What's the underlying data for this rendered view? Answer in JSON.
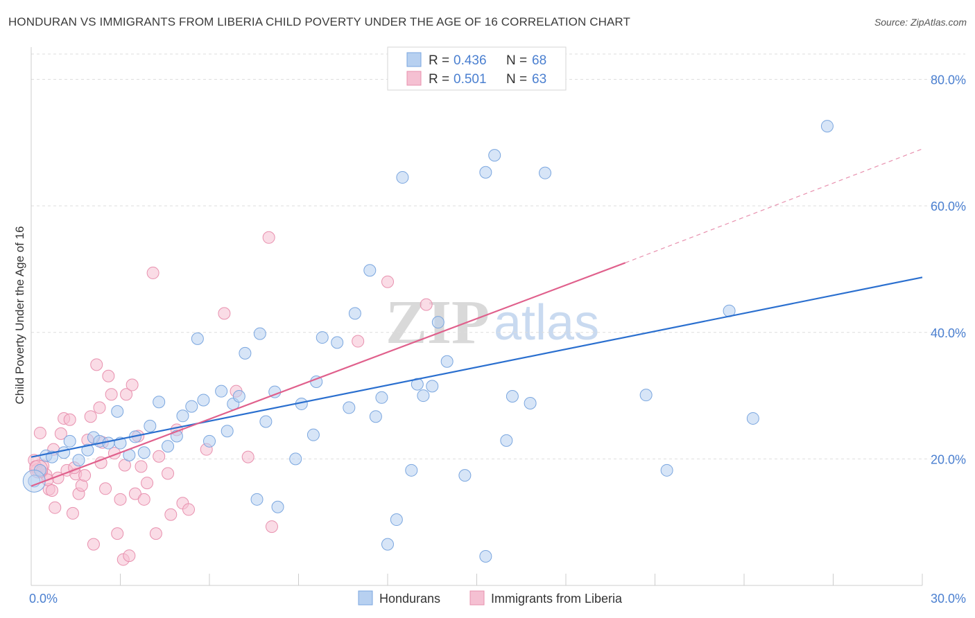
{
  "title": "HONDURAN VS IMMIGRANTS FROM LIBERIA CHILD POVERTY UNDER THE AGE OF 16 CORRELATION CHART",
  "source": "Source: ZipAtlas.com",
  "watermark": {
    "part1": "ZIP",
    "part2": "atlas"
  },
  "colors": {
    "series1_fill": "#b7d0f0",
    "series1_stroke": "#7aa6df",
    "series1_line": "#2a6fcf",
    "series2_fill": "#f5c0d2",
    "series2_stroke": "#e890ae",
    "series2_line": "#e0608c",
    "tick_text": "#4a7fd0",
    "grid": "#dddddd"
  },
  "legend": {
    "r_label": "R =",
    "n_label": "N =",
    "entries": [
      {
        "r": "0.436",
        "n": "68"
      },
      {
        "r": "0.501",
        "n": "63"
      }
    ]
  },
  "chart_data": {
    "type": "scatter",
    "title": "HONDURAN VS IMMIGRANTS FROM LIBERIA CHILD POVERTY UNDER THE AGE OF 16 CORRELATION CHART",
    "xlabel": "",
    "ylabel": "Child Poverty Under the Age of 16",
    "xlim": [
      0,
      30
    ],
    "ylim": [
      0,
      84
    ],
    "x_tick_labels": [
      "0.0%",
      "30.0%"
    ],
    "y_ticks": [
      20,
      40,
      60,
      80
    ],
    "y_tick_labels": [
      "20.0%",
      "40.0%",
      "60.0%",
      "80.0%"
    ],
    "grid": true,
    "legend_position": "top-center",
    "series": [
      {
        "name": "Hondurans",
        "trend": {
          "x": [
            0,
            30
          ],
          "y": [
            20.3,
            48.7
          ],
          "dashed_extension": false
        },
        "points": [
          [
            0.1,
            16.5
          ],
          [
            0.3,
            18.2
          ],
          [
            0.5,
            20.5
          ],
          [
            0.7,
            20.3
          ],
          [
            1.1,
            21.0
          ],
          [
            1.3,
            22.8
          ],
          [
            1.6,
            19.8
          ],
          [
            1.9,
            21.4
          ],
          [
            2.1,
            23.4
          ],
          [
            2.3,
            22.8
          ],
          [
            2.6,
            22.5
          ],
          [
            2.9,
            27.5
          ],
          [
            3.0,
            22.5
          ],
          [
            3.3,
            20.6
          ],
          [
            3.5,
            23.5
          ],
          [
            3.8,
            21.0
          ],
          [
            4.0,
            25.2
          ],
          [
            4.3,
            29.0
          ],
          [
            4.6,
            22.0
          ],
          [
            4.9,
            23.6
          ],
          [
            5.1,
            26.8
          ],
          [
            5.4,
            28.3
          ],
          [
            5.6,
            39.0
          ],
          [
            5.8,
            29.3
          ],
          [
            6.0,
            22.8
          ],
          [
            6.4,
            30.7
          ],
          [
            6.6,
            24.4
          ],
          [
            6.8,
            28.7
          ],
          [
            7.0,
            29.9
          ],
          [
            7.2,
            36.7
          ],
          [
            7.6,
            13.6
          ],
          [
            7.7,
            39.8
          ],
          [
            7.9,
            25.9
          ],
          [
            8.2,
            30.6
          ],
          [
            8.3,
            12.4
          ],
          [
            8.9,
            20.0
          ],
          [
            9.1,
            28.7
          ],
          [
            9.5,
            23.8
          ],
          [
            9.6,
            32.2
          ],
          [
            9.8,
            39.2
          ],
          [
            10.3,
            38.4
          ],
          [
            10.7,
            28.1
          ],
          [
            10.9,
            43.0
          ],
          [
            11.4,
            49.8
          ],
          [
            11.6,
            26.7
          ],
          [
            11.8,
            29.7
          ],
          [
            12.0,
            6.5
          ],
          [
            12.3,
            10.4
          ],
          [
            12.5,
            64.5
          ],
          [
            12.8,
            18.2
          ],
          [
            13.0,
            31.8
          ],
          [
            13.2,
            30.0
          ],
          [
            13.5,
            31.5
          ],
          [
            13.7,
            41.6
          ],
          [
            14.0,
            35.4
          ],
          [
            14.6,
            17.4
          ],
          [
            15.3,
            65.3
          ],
          [
            15.6,
            68.0
          ],
          [
            16.0,
            22.9
          ],
          [
            16.2,
            29.9
          ],
          [
            16.8,
            28.8
          ],
          [
            17.3,
            65.2
          ],
          [
            20.7,
            30.1
          ],
          [
            21.4,
            18.2
          ],
          [
            23.5,
            43.4
          ],
          [
            24.3,
            26.4
          ],
          [
            26.8,
            72.6
          ],
          [
            15.3,
            4.6
          ]
        ]
      },
      {
        "name": "Immigrants from Liberia",
        "trend": {
          "x": [
            0,
            20.0
          ],
          "y": [
            15.7,
            51.0
          ],
          "dashed_extension": true,
          "dashed_to": {
            "x": 30,
            "y": 69
          }
        },
        "points": [
          [
            0.1,
            19.8
          ],
          [
            0.2,
            18.3
          ],
          [
            0.3,
            24.1
          ],
          [
            0.4,
            18.9
          ],
          [
            0.5,
            17.5
          ],
          [
            0.6,
            15.2
          ],
          [
            0.7,
            15.0
          ],
          [
            0.8,
            12.3
          ],
          [
            0.9,
            17.0
          ],
          [
            1.0,
            24.0
          ],
          [
            1.1,
            26.4
          ],
          [
            1.2,
            18.2
          ],
          [
            1.3,
            26.2
          ],
          [
            1.4,
            11.4
          ],
          [
            1.5,
            17.6
          ],
          [
            1.6,
            14.5
          ],
          [
            1.7,
            15.8
          ],
          [
            1.8,
            17.4
          ],
          [
            1.9,
            23.0
          ],
          [
            2.0,
            26.7
          ],
          [
            2.1,
            6.5
          ],
          [
            2.2,
            34.9
          ],
          [
            2.3,
            28.1
          ],
          [
            2.4,
            22.6
          ],
          [
            2.5,
            15.3
          ],
          [
            2.6,
            33.1
          ],
          [
            2.7,
            30.2
          ],
          [
            2.8,
            20.9
          ],
          [
            2.9,
            8.2
          ],
          [
            3.0,
            13.6
          ],
          [
            3.1,
            4.1
          ],
          [
            3.2,
            30.2
          ],
          [
            3.3,
            4.7
          ],
          [
            3.4,
            31.7
          ],
          [
            3.5,
            14.5
          ],
          [
            3.6,
            23.6
          ],
          [
            3.7,
            18.8
          ],
          [
            3.8,
            13.6
          ],
          [
            3.9,
            16.2
          ],
          [
            4.1,
            49.4
          ],
          [
            4.2,
            8.2
          ],
          [
            4.3,
            20.4
          ],
          [
            4.6,
            17.7
          ],
          [
            4.7,
            11.2
          ],
          [
            4.9,
            24.6
          ],
          [
            5.1,
            13.0
          ],
          [
            5.3,
            12.0
          ],
          [
            5.9,
            21.5
          ],
          [
            6.5,
            43.0
          ],
          [
            6.9,
            30.7
          ],
          [
            7.3,
            20.3
          ],
          [
            8.0,
            55.0
          ],
          [
            8.1,
            9.3
          ],
          [
            12.0,
            48.0
          ],
          [
            13.3,
            44.4
          ],
          [
            11.0,
            38.6
          ],
          [
            0.15,
            18.8
          ],
          [
            0.35,
            18.0
          ],
          [
            0.55,
            16.7
          ],
          [
            0.75,
            21.5
          ],
          [
            1.45,
            18.6
          ],
          [
            2.35,
            19.4
          ],
          [
            3.15,
            19.0
          ]
        ]
      }
    ]
  }
}
